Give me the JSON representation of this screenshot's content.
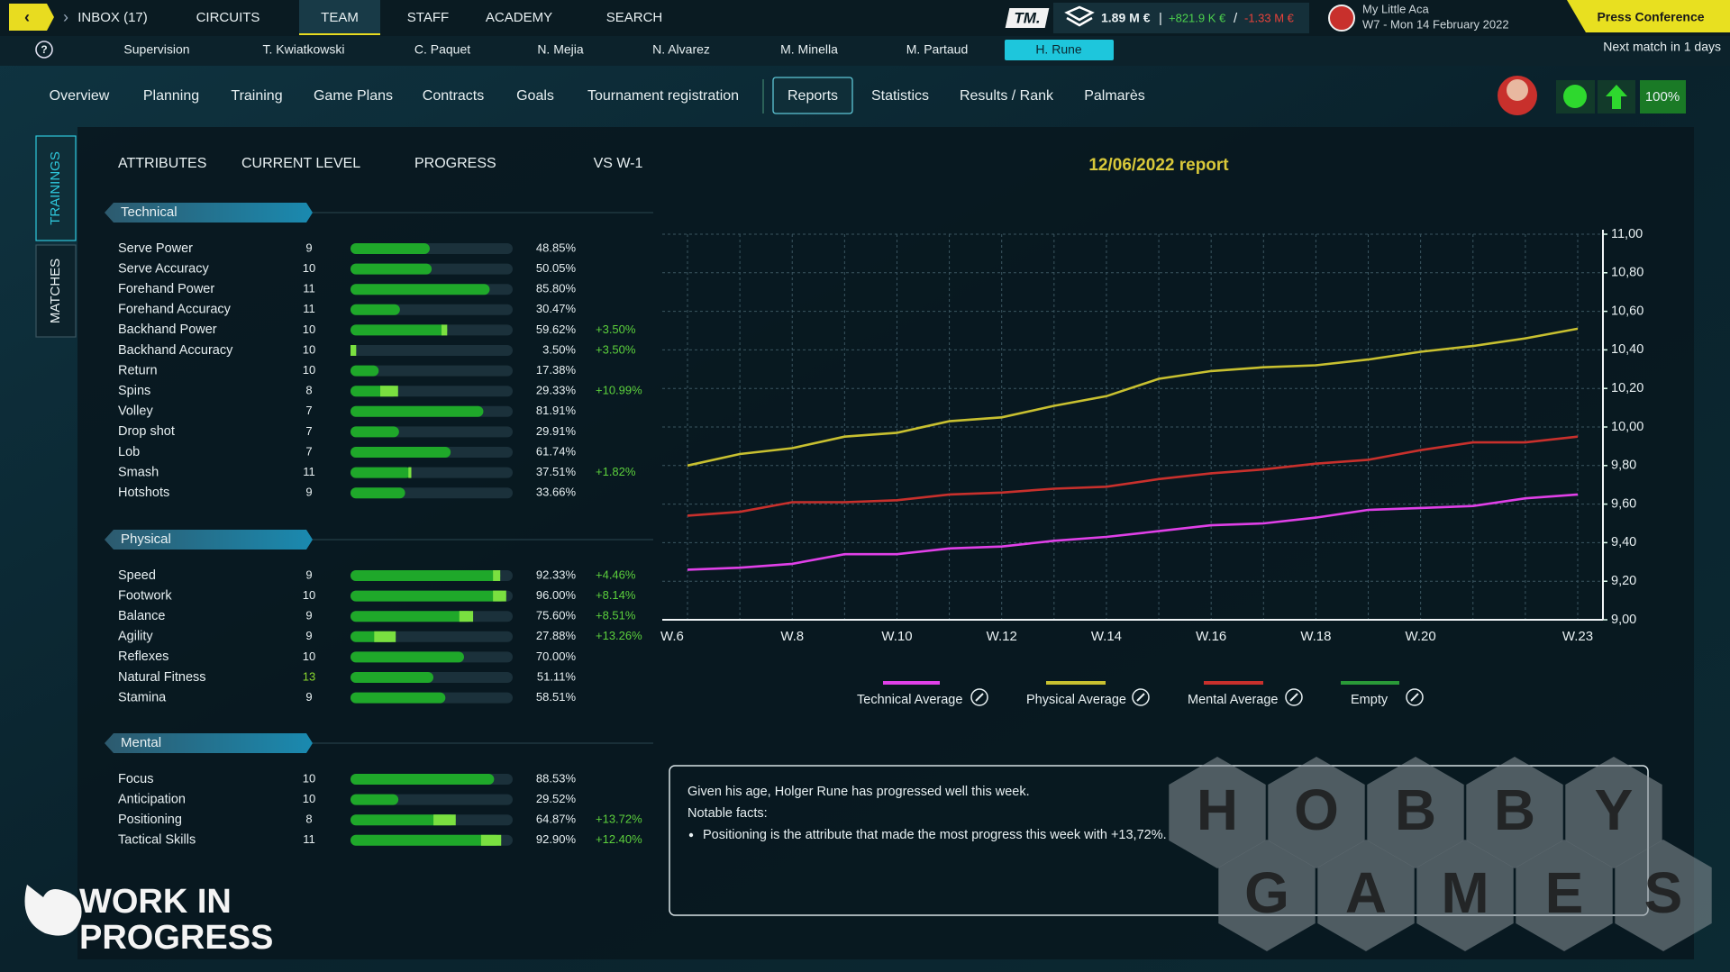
{
  "help": "?",
  "nav": {
    "items": [
      "INBOX (17)",
      "CIRCUITS",
      "TEAM",
      "STAFF",
      "ACADEMY",
      "SEARCH"
    ],
    "active": 2
  },
  "players": {
    "items": [
      "Supervision",
      "T. Kwiatkowski",
      "C. Paquet",
      "N. Mejia",
      "N. Alvarez",
      "M. Minella",
      "M. Partaud",
      "H. Rune"
    ],
    "active": 7
  },
  "finance": {
    "logo": "TM.",
    "balance": "1.89 M €",
    "separator": "|",
    "income": "+821.9 K €",
    "slash": "/",
    "expense": "-1.33 M €"
  },
  "club": {
    "name": "My Little Aca",
    "date": "W7 - Mon 14 February 2022"
  },
  "press_button": "Press Conference",
  "next_match": "Next match in 1 days",
  "tabs": {
    "items": [
      "Overview",
      "Planning",
      "Training",
      "Game Plans",
      "Contracts",
      "Goals",
      "Tournament registration",
      "Reports",
      "Statistics",
      "Results / Rank",
      "Palmarès"
    ],
    "active": 7
  },
  "status": {
    "morale": "100%"
  },
  "side_tabs": {
    "items": [
      "TRAININGS",
      "MATCHES"
    ],
    "active": 0
  },
  "table": {
    "headers": [
      "ATTRIBUTES",
      "CURRENT LEVEL",
      "PROGRESS",
      "VS W-1"
    ],
    "sections": [
      {
        "title": "Technical",
        "rows": [
          {
            "name": "Serve Power",
            "level": 9,
            "progress": 48.85,
            "progress_label": "48.85%"
          },
          {
            "name": "Serve Accuracy",
            "level": 10,
            "progress": 50.05,
            "progress_label": "50.05%"
          },
          {
            "name": "Forehand Power",
            "level": 11,
            "progress": 85.8,
            "progress_label": "85.80%"
          },
          {
            "name": "Forehand Accuracy",
            "level": 11,
            "progress": 30.47,
            "progress_label": "30.47%"
          },
          {
            "name": "Backhand Power",
            "level": 10,
            "progress": 59.62,
            "progress_label": "59.62%",
            "delta": 3.5,
            "delta_label": "+3.50%"
          },
          {
            "name": "Backhand Accuracy",
            "level": 10,
            "progress": 3.5,
            "progress_label": "3.50%",
            "delta": 3.5,
            "delta_label": "+3.50%"
          },
          {
            "name": "Return",
            "level": 10,
            "progress": 17.38,
            "progress_label": "17.38%"
          },
          {
            "name": "Spins",
            "level": 8,
            "progress": 29.33,
            "progress_label": "29.33%",
            "delta": 10.99,
            "delta_label": "+10.99%"
          },
          {
            "name": "Volley",
            "level": 7,
            "progress": 81.91,
            "progress_label": "81.91%"
          },
          {
            "name": "Drop shot",
            "level": 7,
            "progress": 29.91,
            "progress_label": "29.91%"
          },
          {
            "name": "Lob",
            "level": 7,
            "progress": 61.74,
            "progress_label": "61.74%"
          },
          {
            "name": "Smash",
            "level": 11,
            "progress": 37.51,
            "progress_label": "37.51%",
            "delta": 1.82,
            "delta_label": "+1.82%"
          },
          {
            "name": "Hotshots",
            "level": 9,
            "progress": 33.66,
            "progress_label": "33.66%"
          }
        ]
      },
      {
        "title": "Physical",
        "rows": [
          {
            "name": "Speed",
            "level": 9,
            "progress": 92.33,
            "progress_label": "92.33%",
            "delta": 4.46,
            "delta_label": "+4.46%"
          },
          {
            "name": "Footwork",
            "level": 10,
            "progress": 96,
            "progress_label": "96.00%",
            "delta": 8.14,
            "delta_label": "+8.14%"
          },
          {
            "name": "Balance",
            "level": 9,
            "progress": 75.6,
            "progress_label": "75.60%",
            "delta": 8.51,
            "delta_label": "+8.51%"
          },
          {
            "name": "Agility",
            "level": 9,
            "progress": 27.88,
            "progress_label": "27.88%",
            "delta": 13.26,
            "delta_label": "+13.26%"
          },
          {
            "name": "Reflexes",
            "level": 10,
            "progress": 70,
            "progress_label": "70.00%"
          },
          {
            "name": "Natural Fitness",
            "level": 13,
            "progress": 51.11,
            "progress_label": "51.11%",
            "highlight": true
          },
          {
            "name": "Stamina",
            "level": 9,
            "progress": 58.51,
            "progress_label": "58.51%"
          }
        ]
      },
      {
        "title": "Mental",
        "rows": [
          {
            "name": "Focus",
            "level": 10,
            "progress": 88.53,
            "progress_label": "88.53%"
          },
          {
            "name": "Anticipation",
            "level": 10,
            "progress": 29.52,
            "progress_label": "29.52%"
          },
          {
            "name": "Positioning",
            "level": 8,
            "progress": 64.87,
            "progress_label": "64.87%",
            "delta": 13.72,
            "delta_label": "+13.72%"
          },
          {
            "name": "Tactical Skills",
            "level": 11,
            "progress": 92.9,
            "progress_label": "92.90%",
            "delta": 12.4,
            "delta_label": "+12.40%"
          }
        ]
      }
    ]
  },
  "report": {
    "title": "12/06/2022 report",
    "lines": [
      "Given his age, Holger Rune has progressed well this week.",
      "Notable facts:"
    ],
    "bullet": "Positioning is the attribute that made the most progress this week with +13,72%."
  },
  "chart_data": {
    "type": "line",
    "categories": [
      "W.6",
      null,
      "W.8",
      null,
      "W.10",
      null,
      "W.12",
      null,
      "W.14",
      null,
      "W.16",
      null,
      "W.18",
      null,
      "W.20",
      null,
      null,
      "W.23"
    ],
    "series": [
      {
        "name": "Technical Average",
        "color": "#e040e8",
        "values": [
          9.26,
          9.27,
          9.29,
          9.34,
          9.34,
          9.37,
          9.38,
          9.41,
          9.43,
          9.46,
          9.49,
          9.5,
          9.53,
          9.57,
          9.58,
          9.59,
          9.63,
          9.65
        ]
      },
      {
        "name": "Physical Average",
        "color": "#c8c030",
        "values": [
          9.8,
          9.86,
          9.89,
          9.95,
          9.97,
          10.03,
          10.05,
          10.11,
          10.16,
          10.25,
          10.29,
          10.31,
          10.32,
          10.35,
          10.39,
          10.42,
          10.46,
          10.51
        ]
      },
      {
        "name": "Mental Average",
        "color": "#c8302c",
        "values": [
          9.54,
          9.56,
          9.61,
          9.61,
          9.62,
          9.65,
          9.66,
          9.68,
          9.69,
          9.73,
          9.76,
          9.78,
          9.81,
          9.83,
          9.88,
          9.92,
          9.92,
          9.95
        ]
      },
      {
        "name": "Empty",
        "color": "#2a9a38",
        "values": [
          null,
          null,
          null,
          null,
          null,
          null,
          null,
          null,
          null,
          null,
          null,
          null,
          null,
          null,
          null,
          null,
          null,
          null
        ]
      }
    ],
    "ylim": [
      9,
      11
    ],
    "yticks": [
      {
        "value": 9,
        "label": "9,00"
      },
      {
        "value": 9.2,
        "label": "9,20"
      },
      {
        "value": 9.4,
        "label": "9,40"
      },
      {
        "value": 9.6,
        "label": "9,60"
      },
      {
        "value": 9.8,
        "label": "9,80"
      },
      {
        "value": 10,
        "label": "10,00"
      },
      {
        "value": 10.2,
        "label": "10,20"
      },
      {
        "value": 10.4,
        "label": "10,40"
      },
      {
        "value": 10.6,
        "label": "10,60"
      },
      {
        "value": 10.8,
        "label": "10,80"
      },
      {
        "value": 11,
        "label": "11,00"
      }
    ],
    "grid": true,
    "y_axis_side": "right"
  },
  "watermarks": {
    "wip": [
      "WORK IN",
      "PROGRESS"
    ],
    "hobby": [
      "H",
      "O",
      "B",
      "B",
      "Y"
    ],
    "games": [
      "G",
      "A",
      "M",
      "E",
      "S"
    ]
  }
}
